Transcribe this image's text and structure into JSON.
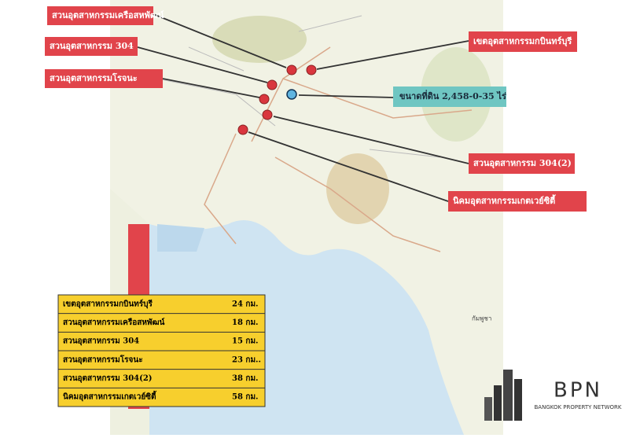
{
  "callouts": [
    "สวนอุตสาหกรรมเครือสหพัฒน์",
    "สวนอุตสาหกรรม 304",
    "สวนอุตสาหกรรมโรจนะ",
    "เขตอุตสาหกรรมกบินทร์บุรี",
    "ขนาดที่ดิน 2,458-0-35 ไร่",
    "สวนอุตสาหกรรม 304(2)",
    "นิคมอุตสาหกรรมเกตเวย์ซิตี้"
  ],
  "distance_table": {
    "rows": [
      [
        "เขตอุตสาหกรรมกบินทร์บุรี",
        "24 กม."
      ],
      [
        "สวนอุตสาหกรรมเครือสหพัฒน์",
        "18 กม."
      ],
      [
        "สวนอุตสาหกรรม 304",
        "15 กม."
      ],
      [
        "สวนอุตสาหกรรมโรจนะ",
        "23 กม.."
      ],
      [
        "สวนอุตสาหกรรม 304(2)",
        "38 กม."
      ],
      [
        "นิคมอุตสาหกรรมเกตเวย์ซิตี้",
        "58 กม."
      ]
    ]
  },
  "map_labels": [
    "กัมพูชา"
  ],
  "logo": {
    "name": "BPN",
    "tagline": "BANGKOK PROPERTY NETWORK"
  }
}
